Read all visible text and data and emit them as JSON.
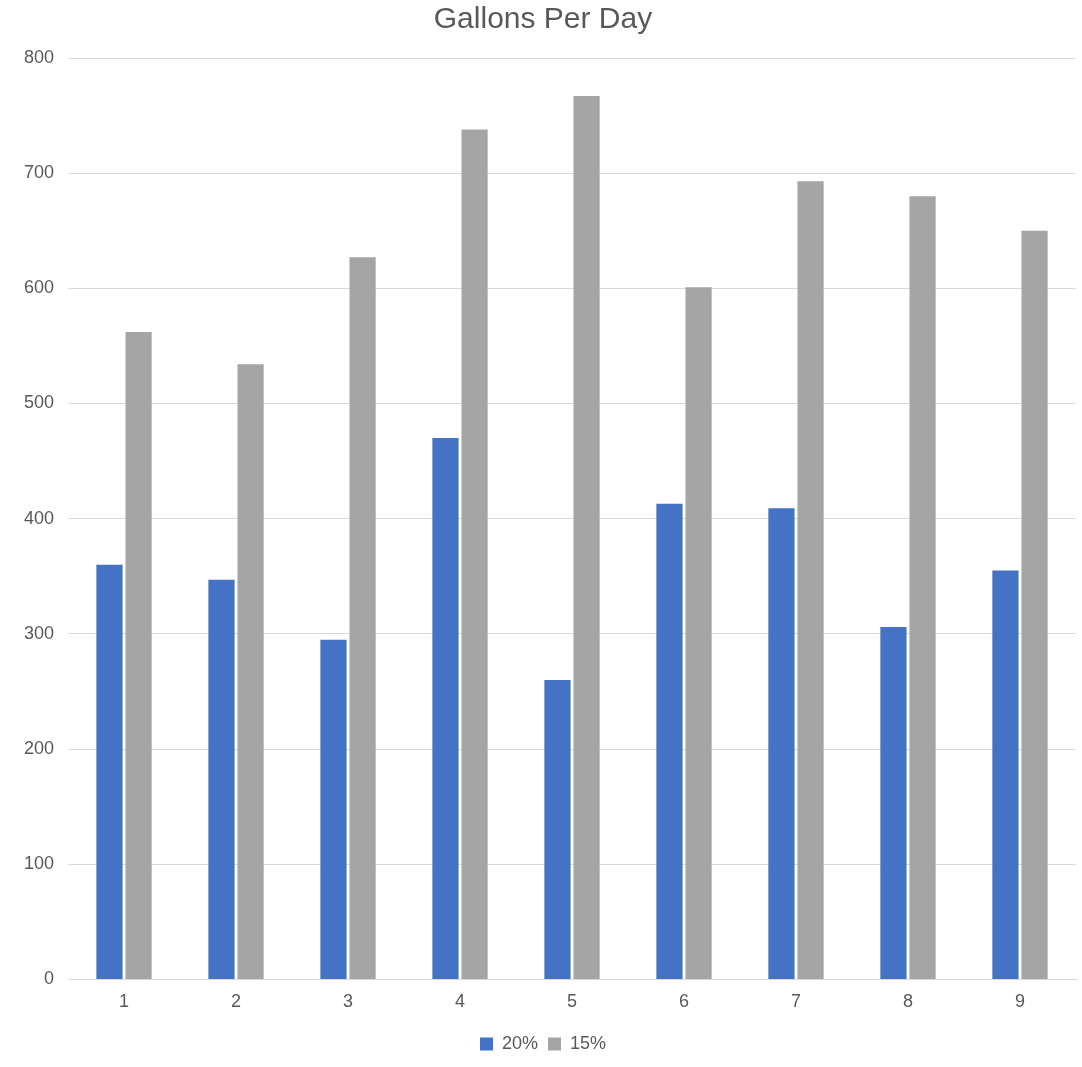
{
  "chart_data": {
    "type": "bar",
    "title": "Gallons Per Day",
    "categories": [
      "1",
      "2",
      "3",
      "4",
      "5",
      "6",
      "7",
      "8",
      "9"
    ],
    "series": [
      {
        "name": "20%",
        "color": "#4472c4",
        "values": [
          360,
          347,
          295,
          470,
          260,
          413,
          409,
          306,
          355
        ]
      },
      {
        "name": "15%",
        "color": "#a5a5a5",
        "values": [
          562,
          534,
          627,
          738,
          767,
          601,
          693,
          680,
          650
        ]
      }
    ],
    "ylim": [
      0,
      800
    ],
    "yticks": [
      0,
      100,
      200,
      300,
      400,
      500,
      600,
      700,
      800
    ],
    "grid": "y",
    "legend": "bottom"
  }
}
